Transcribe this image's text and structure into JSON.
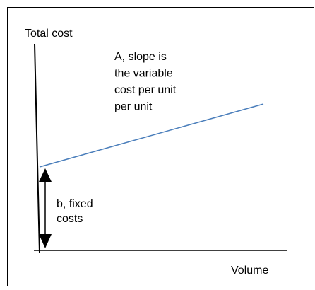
{
  "axes": {
    "y_label": "Total cost",
    "x_label": "Volume"
  },
  "slope_note": {
    "lines": [
      "A, slope is",
      "the variable",
      "cost per unit",
      "per unit"
    ]
  },
  "intercept_note": {
    "lines": [
      "b, fixed",
      "costs"
    ]
  }
}
